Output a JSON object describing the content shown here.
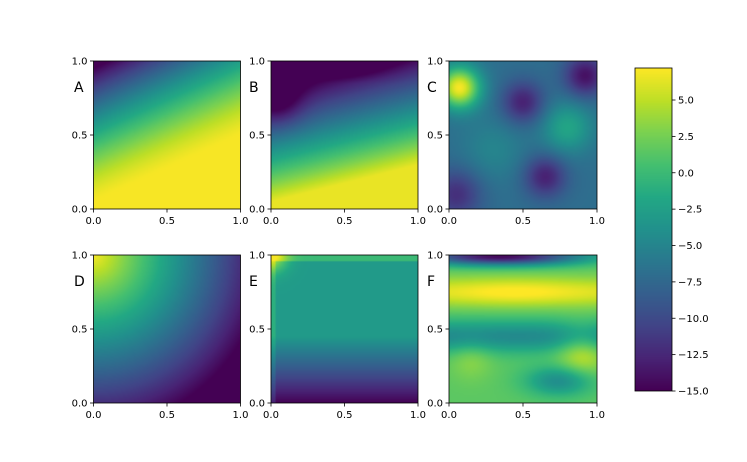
{
  "chart_data": {
    "type": "heatmap",
    "colormap": "viridis",
    "vmin": -15,
    "vmax": 7.2,
    "x_ticks": [
      "0.0",
      "0.5",
      "1.0"
    ],
    "y_ticks": [
      "0.0",
      "0.5",
      "1.0"
    ],
    "xlim": [
      0,
      1
    ],
    "ylim": [
      0,
      1
    ],
    "colorbar_ticks": [
      "−15.0",
      "−12.5",
      "−10.0",
      "−7.5",
      "−5.0",
      "−2.5",
      "0.0",
      "2.5",
      "5.0"
    ],
    "colorbar_values": [
      -15,
      -12.5,
      -10,
      -7.5,
      -5,
      -2.5,
      0,
      2.5,
      5
    ],
    "panels": [
      {
        "label": "A"
      },
      {
        "label": "B"
      },
      {
        "label": "C"
      },
      {
        "label": "D"
      },
      {
        "label": "E"
      },
      {
        "label": "F"
      }
    ]
  }
}
